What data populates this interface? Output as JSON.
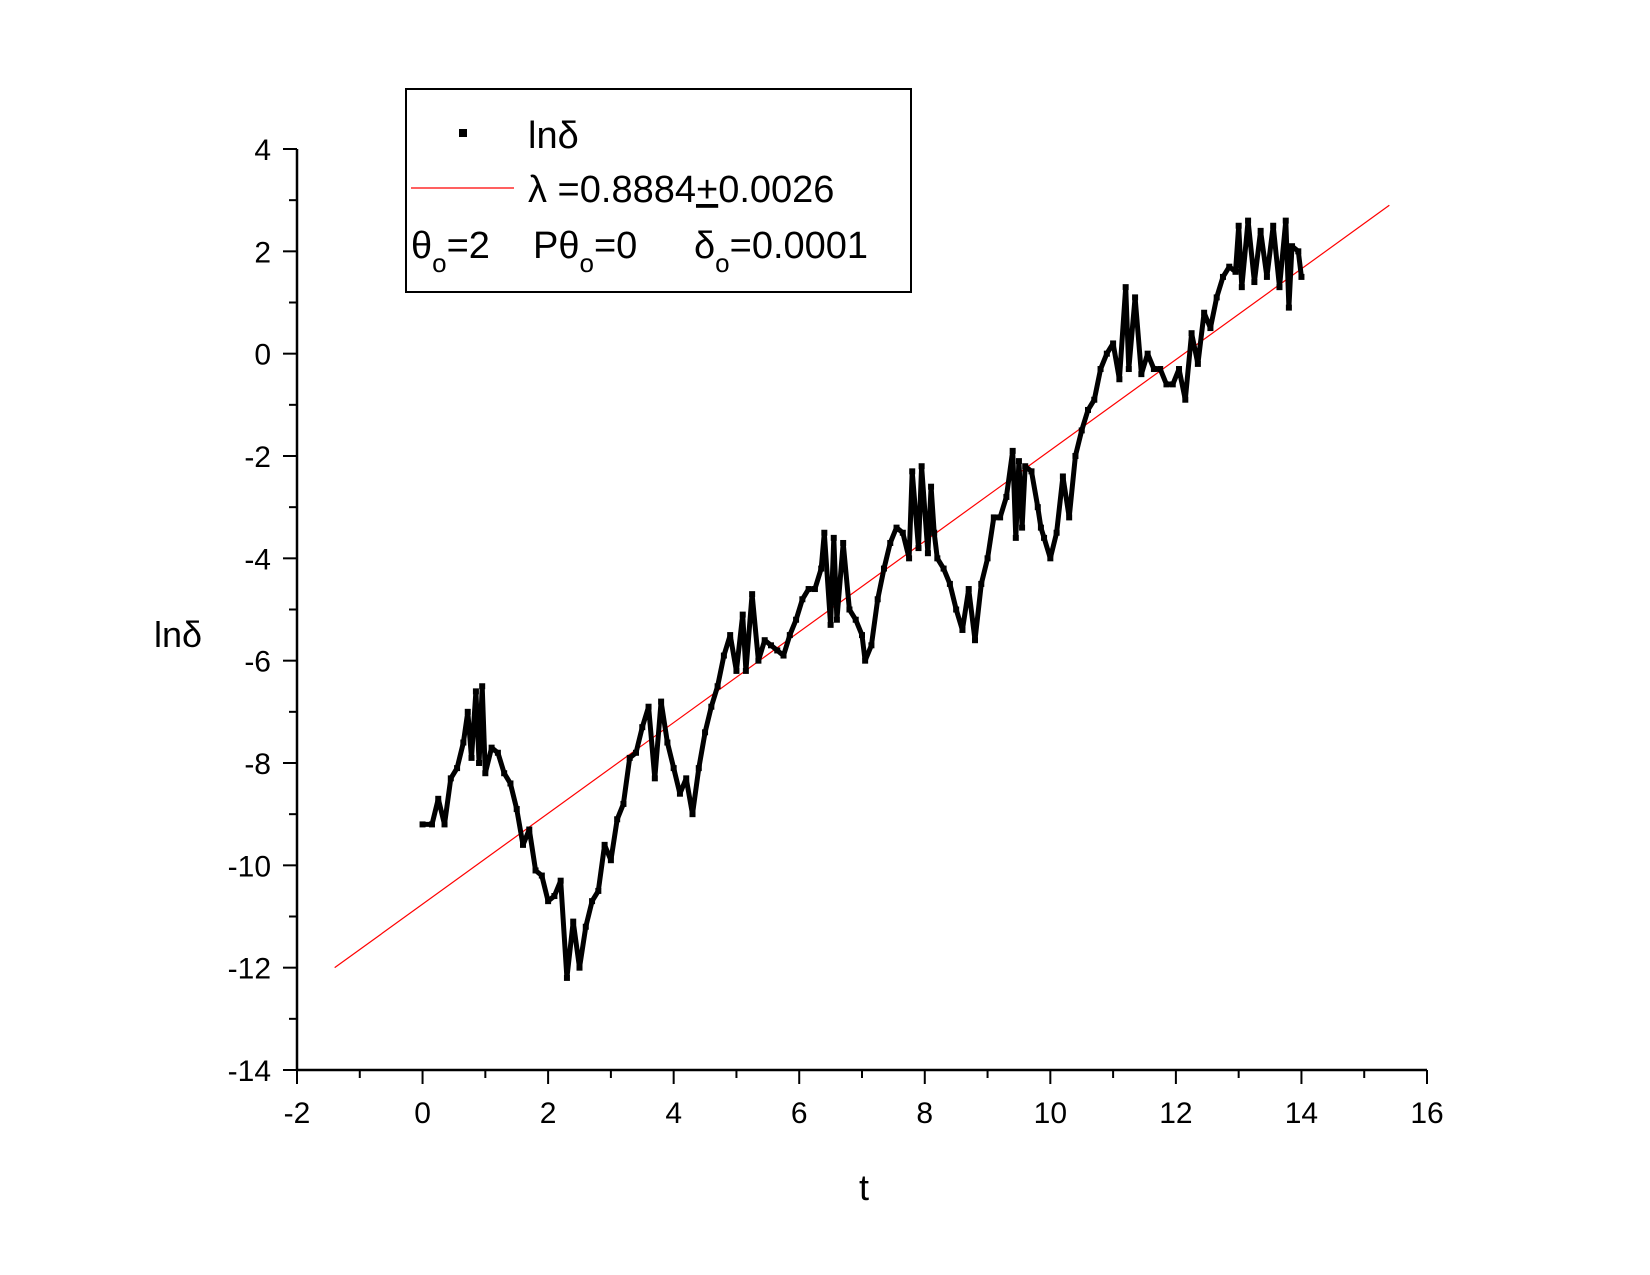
{
  "chart_data": {
    "type": "line",
    "xlabel": "t",
    "ylabel": "lnδ",
    "xlim": [
      -2,
      16
    ],
    "ylim": [
      -14,
      4
    ],
    "x_ticks": [
      "-2",
      "0",
      "2",
      "4",
      "6",
      "8",
      "10",
      "12",
      "14",
      "16"
    ],
    "y_ticks": [
      "4",
      "2",
      "0",
      "-2",
      "-4",
      "-6",
      "-8",
      "-10",
      "-12",
      "-14"
    ],
    "grid": false,
    "legend_position": "top-left",
    "colors": {
      "data": "#000000",
      "fit": "#ff0000",
      "axes": "#000000"
    },
    "series": [
      {
        "name": "lnδ",
        "style": "scatter-dense",
        "points": [
          [
            0.0,
            -9.2
          ],
          [
            0.15,
            -9.2
          ],
          [
            0.25,
            -8.7
          ],
          [
            0.35,
            -9.2
          ],
          [
            0.45,
            -8.3
          ],
          [
            0.55,
            -8.1
          ],
          [
            0.65,
            -7.6
          ],
          [
            0.72,
            -7.0
          ],
          [
            0.78,
            -7.9
          ],
          [
            0.85,
            -6.6
          ],
          [
            0.9,
            -8.0
          ],
          [
            0.95,
            -6.5
          ],
          [
            1.0,
            -8.2
          ],
          [
            1.1,
            -7.7
          ],
          [
            1.2,
            -7.8
          ],
          [
            1.3,
            -8.2
          ],
          [
            1.4,
            -8.4
          ],
          [
            1.5,
            -8.9
          ],
          [
            1.6,
            -9.6
          ],
          [
            1.7,
            -9.3
          ],
          [
            1.8,
            -10.1
          ],
          [
            1.9,
            -10.2
          ],
          [
            2.0,
            -10.7
          ],
          [
            2.1,
            -10.6
          ],
          [
            2.2,
            -10.3
          ],
          [
            2.3,
            -12.2
          ],
          [
            2.4,
            -11.1
          ],
          [
            2.5,
            -12.0
          ],
          [
            2.6,
            -11.2
          ],
          [
            2.7,
            -10.7
          ],
          [
            2.8,
            -10.5
          ],
          [
            2.9,
            -9.6
          ],
          [
            3.0,
            -9.9
          ],
          [
            3.1,
            -9.1
          ],
          [
            3.2,
            -8.8
          ],
          [
            3.3,
            -7.9
          ],
          [
            3.4,
            -7.8
          ],
          [
            3.5,
            -7.3
          ],
          [
            3.6,
            -6.9
          ],
          [
            3.7,
            -8.3
          ],
          [
            3.8,
            -6.8
          ],
          [
            3.9,
            -7.6
          ],
          [
            4.0,
            -8.1
          ],
          [
            4.1,
            -8.6
          ],
          [
            4.2,
            -8.3
          ],
          [
            4.3,
            -9.0
          ],
          [
            4.4,
            -8.1
          ],
          [
            4.5,
            -7.4
          ],
          [
            4.6,
            -6.9
          ],
          [
            4.7,
            -6.5
          ],
          [
            4.8,
            -5.9
          ],
          [
            4.9,
            -5.5
          ],
          [
            5.0,
            -6.2
          ],
          [
            5.1,
            -5.1
          ],
          [
            5.15,
            -6.2
          ],
          [
            5.25,
            -4.7
          ],
          [
            5.35,
            -6.0
          ],
          [
            5.45,
            -5.6
          ],
          [
            5.55,
            -5.7
          ],
          [
            5.65,
            -5.8
          ],
          [
            5.75,
            -5.9
          ],
          [
            5.85,
            -5.5
          ],
          [
            5.95,
            -5.2
          ],
          [
            6.05,
            -4.8
          ],
          [
            6.15,
            -4.6
          ],
          [
            6.25,
            -4.6
          ],
          [
            6.35,
            -4.2
          ],
          [
            6.4,
            -3.5
          ],
          [
            6.5,
            -5.3
          ],
          [
            6.55,
            -3.6
          ],
          [
            6.6,
            -5.2
          ],
          [
            6.7,
            -3.7
          ],
          [
            6.8,
            -5.0
          ],
          [
            6.9,
            -5.2
          ],
          [
            7.0,
            -5.5
          ],
          [
            7.05,
            -6.0
          ],
          [
            7.15,
            -5.7
          ],
          [
            7.25,
            -4.8
          ],
          [
            7.35,
            -4.2
          ],
          [
            7.45,
            -3.7
          ],
          [
            7.55,
            -3.4
          ],
          [
            7.65,
            -3.5
          ],
          [
            7.75,
            -4.0
          ],
          [
            7.8,
            -2.3
          ],
          [
            7.9,
            -3.8
          ],
          [
            7.95,
            -2.2
          ],
          [
            8.05,
            -3.9
          ],
          [
            8.1,
            -2.6
          ],
          [
            8.15,
            -3.5
          ],
          [
            8.2,
            -4.0
          ],
          [
            8.3,
            -4.2
          ],
          [
            8.4,
            -4.5
          ],
          [
            8.5,
            -5.0
          ],
          [
            8.6,
            -5.4
          ],
          [
            8.7,
            -4.6
          ],
          [
            8.8,
            -5.6
          ],
          [
            8.9,
            -4.5
          ],
          [
            9.0,
            -4.0
          ],
          [
            9.1,
            -3.2
          ],
          [
            9.2,
            -3.2
          ],
          [
            9.3,
            -2.8
          ],
          [
            9.4,
            -1.9
          ],
          [
            9.45,
            -3.6
          ],
          [
            9.5,
            -2.1
          ],
          [
            9.55,
            -3.4
          ],
          [
            9.6,
            -2.2
          ],
          [
            9.7,
            -2.3
          ],
          [
            9.8,
            -3.0
          ],
          [
            9.85,
            -3.4
          ],
          [
            9.9,
            -3.6
          ],
          [
            10.0,
            -4.0
          ],
          [
            10.1,
            -3.5
          ],
          [
            10.2,
            -2.4
          ],
          [
            10.3,
            -3.2
          ],
          [
            10.4,
            -2.0
          ],
          [
            10.5,
            -1.5
          ],
          [
            10.6,
            -1.1
          ],
          [
            10.7,
            -0.9
          ],
          [
            10.8,
            -0.3
          ],
          [
            10.9,
            0.0
          ],
          [
            11.0,
            0.2
          ],
          [
            11.1,
            -0.5
          ],
          [
            11.2,
            1.3
          ],
          [
            11.25,
            -0.3
          ],
          [
            11.35,
            1.1
          ],
          [
            11.45,
            -0.4
          ],
          [
            11.55,
            0.0
          ],
          [
            11.65,
            -0.3
          ],
          [
            11.75,
            -0.3
          ],
          [
            11.85,
            -0.6
          ],
          [
            11.95,
            -0.6
          ],
          [
            12.05,
            -0.3
          ],
          [
            12.15,
            -0.9
          ],
          [
            12.25,
            0.4
          ],
          [
            12.35,
            -0.2
          ],
          [
            12.45,
            0.8
          ],
          [
            12.55,
            0.5
          ],
          [
            12.65,
            1.1
          ],
          [
            12.75,
            1.5
          ],
          [
            12.85,
            1.7
          ],
          [
            12.95,
            1.6
          ],
          [
            13.0,
            2.5
          ],
          [
            13.05,
            1.3
          ],
          [
            13.15,
            2.6
          ],
          [
            13.25,
            1.4
          ],
          [
            13.35,
            2.4
          ],
          [
            13.45,
            1.5
          ],
          [
            13.55,
            2.5
          ],
          [
            13.65,
            1.3
          ],
          [
            13.75,
            2.6
          ],
          [
            13.8,
            0.9
          ],
          [
            13.85,
            2.1
          ],
          [
            13.95,
            2.0
          ],
          [
            14.0,
            1.5
          ]
        ]
      },
      {
        "name": "λ =0.8884+0.0026",
        "style": "line",
        "x": [
          -1.4,
          15.4
        ],
        "y": [
          -12.0,
          2.9
        ]
      }
    ],
    "annotation": {
      "theta_label": "θ",
      "theta_sub": "o",
      "theta_val": "=2",
      "ptheta_label": "Pθ",
      "ptheta_sub": "o",
      "ptheta_val": "=0",
      "delta_label": "δ",
      "delta_sub": "o",
      "delta_val": "=0.0001"
    },
    "fit_parts": {
      "prefix": "λ =0.8884",
      "pm": "+",
      "suffix": "0.0026"
    }
  }
}
